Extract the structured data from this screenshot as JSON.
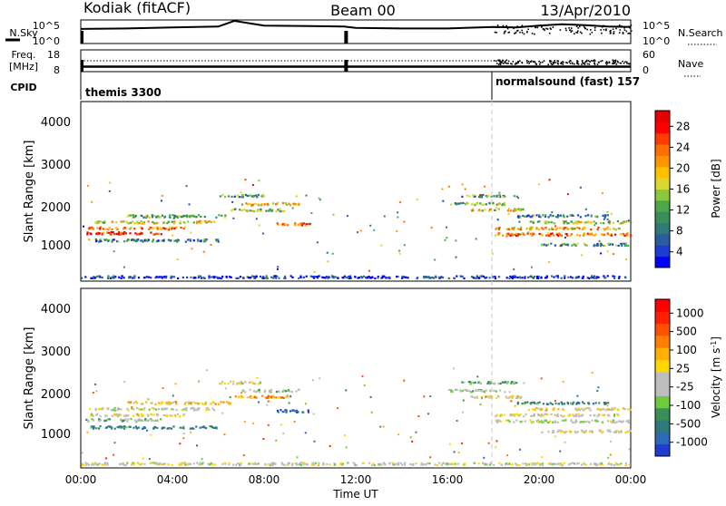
{
  "header": {
    "radar": "Kodiak (fitACF)",
    "beam": "Beam 00",
    "date": "13/Apr/2010"
  },
  "top_panels": {
    "nsky_label": "N.Sky",
    "nsky_ticks": [
      "10^5",
      "10^0"
    ],
    "nsearch_label": "N.Search",
    "nsearch_ticks": [
      "10^5",
      "10^0"
    ],
    "freq_label": "Freq.",
    "freq_unit": "[MHz]",
    "freq_ticks": [
      "18",
      "8"
    ],
    "nave_label": "Nave",
    "nave_ticks": [
      "60",
      "0"
    ],
    "cpid_label": "CPID",
    "cpid_segments": [
      {
        "label": "themis 3300",
        "start_hour": 0.0
      },
      {
        "label": "normalsound (fast) 157",
        "start_hour": 18.0
      }
    ]
  },
  "x_axis": {
    "label": "Time UT",
    "ticks": [
      "00:00",
      "04:00",
      "08:00",
      "12:00",
      "16:00",
      "20:00",
      "00:00"
    ],
    "range_hours": [
      0,
      24
    ]
  },
  "panels": [
    {
      "ylabel": "Slant Range [km]",
      "yticks": [
        "4000",
        "3000",
        "2000",
        "1000"
      ]
    },
    {
      "ylabel": "Slant Range [km]",
      "yticks": [
        "4000",
        "3000",
        "2000",
        "1000"
      ]
    }
  ],
  "colorbars": [
    {
      "label": "Power [dB]",
      "ticks": [
        "28",
        "24",
        "20",
        "16",
        "12",
        "8",
        "4"
      ],
      "colors": [
        "#0000ff",
        "#1e3cd2",
        "#2c5ca0",
        "#2d7a78",
        "#3a8f58",
        "#4aa84a",
        "#8cc83c",
        "#d8d830",
        "#ffc000",
        "#ff9600",
        "#ff6e00",
        "#ff3c00",
        "#ff0000",
        "#e60000"
      ]
    },
    {
      "label": "Velocity [m s^-1]",
      "ticks": [
        "1000",
        "500",
        "100",
        "25",
        "-25",
        "-100",
        "-500",
        "-1000"
      ],
      "colors": [
        "#1e3cd2",
        "#2a6ab8",
        "#2d7a78",
        "#3a8f58",
        "#6ccc3c",
        "#bebebe",
        "#bebebe",
        "#ffd800",
        "#ffb000",
        "#ff8000",
        "#ff5000",
        "#ff2000",
        "#ff0000"
      ]
    }
  ],
  "chart_data": [
    {
      "type": "scatter",
      "title": "N.Sky / N.Search",
      "x_range": [
        0,
        24
      ],
      "series": [
        {
          "name": "N.Sky",
          "x": [
            0,
            2,
            4,
            6,
            6.7,
            8,
            10,
            11.5,
            12,
            14,
            16,
            18,
            19,
            20,
            21,
            22,
            23,
            24
          ],
          "y": [
            3.1,
            3.2,
            3.4,
            3.6,
            4.8,
            3.8,
            3.7,
            3.6,
            3.3,
            3.2,
            3.2,
            3.5,
            3.4,
            3.8,
            4.1,
            3.9,
            3.6,
            3.5
          ]
        }
      ]
    },
    {
      "type": "line",
      "title": "Freq. / Nave",
      "x_range": [
        0,
        24
      ],
      "series": [
        {
          "name": "Freq. [MHz]",
          "x": [
            0,
            11.5,
            18,
            24
          ],
          "y": [
            10.3,
            10.3,
            10.3,
            10.3
          ]
        },
        {
          "name": "Nave",
          "x": [
            0,
            18,
            18.1,
            24
          ],
          "y": [
            30,
            30,
            38,
            38
          ]
        }
      ]
    },
    {
      "type": "heatmap",
      "title": "Power [dB]",
      "x_range_hours": [
        0,
        24
      ],
      "y_range_km": [
        180,
        4600
      ],
      "clim": [
        3,
        30
      ],
      "bands": [
        {
          "t0": 0.2,
          "t1": 3.5,
          "range": 1380,
          "value": 28
        },
        {
          "t0": 0.3,
          "t1": 4.5,
          "range": 1500,
          "value": 22
        },
        {
          "t0": 0.6,
          "t1": 5.8,
          "range": 1650,
          "value": 18
        },
        {
          "t0": 2.0,
          "t1": 6.5,
          "range": 1800,
          "value": 14
        },
        {
          "t0": 0.4,
          "t1": 6.0,
          "range": 1200,
          "value": 10
        },
        {
          "t0": 7.0,
          "t1": 9.5,
          "range": 2100,
          "value": 20
        },
        {
          "t0": 6.5,
          "t1": 9.0,
          "range": 1950,
          "value": 16
        },
        {
          "t0": 6.0,
          "t1": 8.0,
          "range": 2300,
          "value": 12
        },
        {
          "t0": 8.5,
          "t1": 10.0,
          "range": 1600,
          "value": 24
        },
        {
          "t0": 16.5,
          "t1": 19.0,
          "range": 2300,
          "value": 12
        },
        {
          "t0": 16.0,
          "t1": 18.5,
          "range": 2100,
          "value": 14
        },
        {
          "t0": 17.0,
          "t1": 19.5,
          "range": 1950,
          "value": 18
        },
        {
          "t0": 18.0,
          "t1": 23.5,
          "range": 1500,
          "value": 20
        },
        {
          "t0": 18.0,
          "t1": 24.0,
          "range": 1350,
          "value": 24
        },
        {
          "t0": 19.5,
          "t1": 24.0,
          "range": 1650,
          "value": 16
        },
        {
          "t0": 20.0,
          "t1": 24.0,
          "range": 1100,
          "value": 12
        },
        {
          "t0": 19.0,
          "t1": 23.0,
          "range": 1800,
          "value": 10
        },
        {
          "t0": 0.0,
          "t1": 24.0,
          "range": 300,
          "value": 6
        }
      ]
    },
    {
      "type": "heatmap",
      "title": "Velocity [m s^-1]",
      "x_range_hours": [
        0,
        24
      ],
      "y_range_km": [
        180,
        4600
      ],
      "clim": [
        -1000,
        1000
      ],
      "bands": [
        {
          "t0": 0.2,
          "t1": 3.5,
          "range": 1380,
          "value": -300
        },
        {
          "t0": 0.3,
          "t1": 4.5,
          "range": 1500,
          "value": 0
        },
        {
          "t0": 0.6,
          "t1": 5.8,
          "range": 1650,
          "value": -80
        },
        {
          "t0": 2.0,
          "t1": 6.5,
          "range": 1800,
          "value": 200
        },
        {
          "t0": 0.4,
          "t1": 6.0,
          "range": 1200,
          "value": -600
        },
        {
          "t0": 7.0,
          "t1": 9.5,
          "range": 2100,
          "value": -150
        },
        {
          "t0": 6.5,
          "t1": 9.0,
          "range": 1950,
          "value": 400
        },
        {
          "t0": 6.0,
          "t1": 8.0,
          "range": 2300,
          "value": -50
        },
        {
          "t0": 8.5,
          "t1": 10.0,
          "range": 1600,
          "value": -800
        },
        {
          "t0": 16.5,
          "t1": 19.0,
          "range": 2300,
          "value": -400
        },
        {
          "t0": 16.0,
          "t1": 18.5,
          "range": 2100,
          "value": -200
        },
        {
          "t0": 17.0,
          "t1": 19.5,
          "range": 1950,
          "value": 0
        },
        {
          "t0": 18.0,
          "t1": 23.5,
          "range": 1500,
          "value": -20
        },
        {
          "t0": 18.0,
          "t1": 24.0,
          "range": 1350,
          "value": -120
        },
        {
          "t0": 19.5,
          "t1": 24.0,
          "range": 1650,
          "value": 80
        },
        {
          "t0": 20.0,
          "t1": 24.0,
          "range": 1100,
          "value": 10
        },
        {
          "t0": 19.0,
          "t1": 23.0,
          "range": 1800,
          "value": -600
        },
        {
          "t0": 0.0,
          "t1": 24.0,
          "range": 300,
          "value": -60
        }
      ]
    }
  ]
}
